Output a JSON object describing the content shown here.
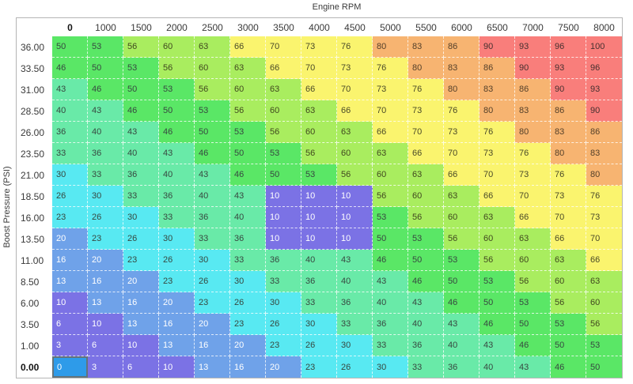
{
  "axes": {
    "x_title": "Engine RPM",
    "y_title": "Boost Pressure (PSI)"
  },
  "chart_data": {
    "type": "heatmap",
    "xlabel": "Engine RPM",
    "ylabel": "Boost Pressure (PSI)",
    "columns": [
      "0",
      "1000",
      "1500",
      "2000",
      "2500",
      "3000",
      "3500",
      "4000",
      "4500",
      "5000",
      "5500",
      "6000",
      "6500",
      "7000",
      "7500",
      "8000"
    ],
    "rows": [
      "36.00",
      "33.50",
      "31.00",
      "28.50",
      "26.00",
      "23.50",
      "21.00",
      "18.50",
      "16.00",
      "13.50",
      "11.00",
      "8.50",
      "6.00",
      "3.50",
      "1.00",
      "0.00"
    ],
    "values": [
      [
        50,
        53,
        56,
        60,
        63,
        66,
        70,
        73,
        76,
        80,
        83,
        86,
        90,
        93,
        96,
        100
      ],
      [
        46,
        50,
        53,
        56,
        60,
        63,
        66,
        70,
        73,
        76,
        80,
        83,
        86,
        90,
        93,
        96
      ],
      [
        43,
        46,
        50,
        53,
        56,
        60,
        63,
        66,
        70,
        73,
        76,
        80,
        83,
        86,
        90,
        93
      ],
      [
        40,
        43,
        46,
        50,
        53,
        56,
        60,
        63,
        66,
        70,
        73,
        76,
        80,
        83,
        86,
        90
      ],
      [
        36,
        40,
        43,
        46,
        50,
        53,
        56,
        60,
        63,
        66,
        70,
        73,
        76,
        80,
        83,
        86
      ],
      [
        33,
        36,
        40,
        43,
        46,
        50,
        53,
        56,
        60,
        63,
        66,
        70,
        73,
        76,
        80,
        83
      ],
      [
        30,
        33,
        36,
        40,
        43,
        46,
        50,
        53,
        56,
        60,
        63,
        66,
        70,
        73,
        76,
        80
      ],
      [
        26,
        30,
        33,
        36,
        40,
        43,
        10,
        10,
        10,
        56,
        60,
        63,
        66,
        70,
        73,
        76
      ],
      [
        23,
        26,
        30,
        33,
        36,
        40,
        10,
        10,
        10,
        53,
        56,
        60,
        63,
        66,
        70,
        73
      ],
      [
        20,
        23,
        26,
        30,
        33,
        36,
        10,
        10,
        10,
        50,
        53,
        56,
        60,
        63,
        66,
        70
      ],
      [
        16,
        20,
        23,
        26,
        30,
        33,
        36,
        40,
        43,
        46,
        50,
        53,
        56,
        60,
        63,
        66
      ],
      [
        13,
        16,
        20,
        23,
        26,
        30,
        33,
        36,
        40,
        43,
        46,
        50,
        53,
        56,
        60,
        63
      ],
      [
        10,
        13,
        16,
        20,
        23,
        26,
        30,
        33,
        36,
        40,
        43,
        46,
        50,
        53,
        56,
        60
      ],
      [
        6,
        10,
        13,
        16,
        20,
        23,
        26,
        30,
        33,
        36,
        40,
        43,
        46,
        50,
        53,
        56
      ],
      [
        3,
        6,
        10,
        13,
        16,
        20,
        23,
        26,
        30,
        33,
        36,
        40,
        43,
        46,
        50,
        53
      ],
      [
        0,
        3,
        6,
        10,
        13,
        16,
        20,
        23,
        26,
        30,
        33,
        36,
        40,
        43,
        46,
        50
      ]
    ],
    "selected_cell": {
      "row": "0.00",
      "column": "0",
      "value": 0
    },
    "color_scale": [
      {
        "max": 10,
        "bg": "#7B72E5",
        "text": "#FFFFFF"
      },
      {
        "max": 20,
        "bg": "#6FA2E9",
        "text": "#FFFFFF"
      },
      {
        "max": 30,
        "bg": "#58E9F2",
        "text": "#374840"
      },
      {
        "max": 43,
        "bg": "#69EAA8",
        "text": "#374840"
      },
      {
        "max": 53,
        "bg": "#5AE766",
        "text": "#374840"
      },
      {
        "max": 63,
        "bg": "#A9ED5F",
        "text": "#41481F"
      },
      {
        "max": 76,
        "bg": "#FAF46E",
        "text": "#4A4A28"
      },
      {
        "max": 86,
        "bg": "#F7B471",
        "text": "#54402A"
      },
      {
        "max": 100,
        "bg": "#F97E7B",
        "text": "#45302F"
      }
    ],
    "selected_style": {
      "bg": "#2E9BE9",
      "text": "#FFFFFF",
      "border": "#64747B"
    }
  }
}
